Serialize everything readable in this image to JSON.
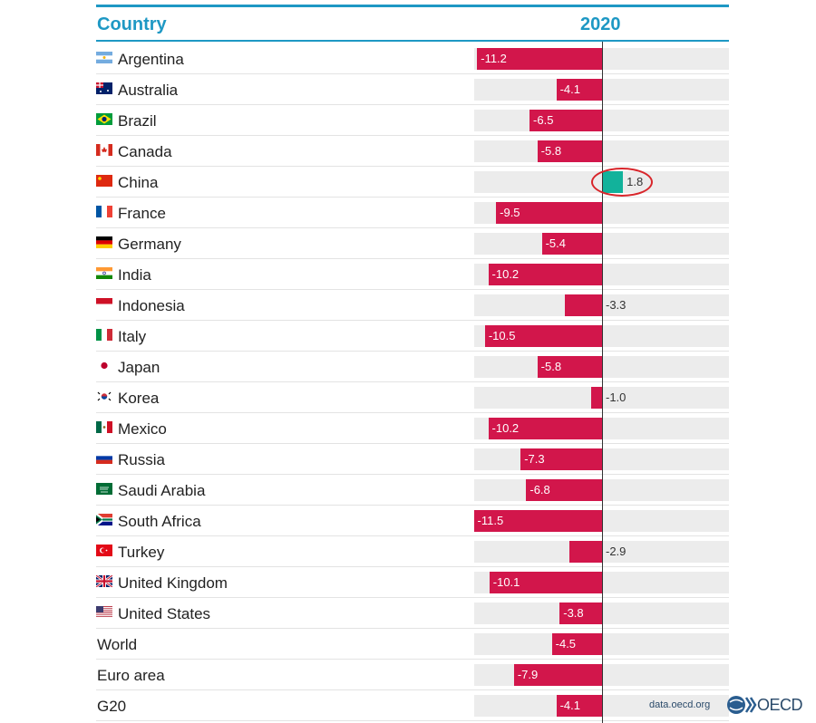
{
  "header": {
    "country_label": "Country",
    "year_label": "2020"
  },
  "footer": {
    "source": "data.oecd.org",
    "logo_text": "OECD"
  },
  "colors": {
    "negative": "#d2164b",
    "positive": "#12b29b",
    "accent": "#1e98c4",
    "track": "#ececec",
    "highlight_ring": "#d8262b"
  },
  "highlight": {
    "country": "China"
  },
  "chart_data": {
    "type": "bar",
    "orientation": "horizontal",
    "categories": [
      "Argentina",
      "Australia",
      "Brazil",
      "Canada",
      "China",
      "France",
      "Germany",
      "India",
      "Indonesia",
      "Italy",
      "Japan",
      "Korea",
      "Mexico",
      "Russia",
      "Saudi Arabia",
      "South Africa",
      "Turkey",
      "United Kingdom",
      "United States",
      "World",
      "Euro area",
      "G20"
    ],
    "values": [
      -11.2,
      -4.1,
      -6.5,
      -5.8,
      1.8,
      -9.5,
      -5.4,
      -10.2,
      -3.3,
      -10.5,
      -5.8,
      -1.0,
      -10.2,
      -7.3,
      -6.8,
      -11.5,
      -2.9,
      -10.1,
      -3.8,
      -4.5,
      -7.9,
      -4.1
    ],
    "labels": [
      "-11.2",
      "-4.1",
      "-6.5",
      "-5.8",
      "1.8",
      "-9.5",
      "-5.4",
      "-10.2",
      "-3.3",
      "-10.5",
      "-5.8",
      "-1.0",
      "-10.2",
      "-7.3",
      "-6.8",
      "-11.5",
      "-2.9",
      "-10.1",
      "-3.8",
      "-4.5",
      "-7.9",
      "-4.1"
    ],
    "flags": [
      "argentina",
      "australia",
      "brazil",
      "canada",
      "china",
      "france",
      "germany",
      "india",
      "indonesia",
      "italy",
      "japan",
      "korea",
      "mexico",
      "russia",
      "saudi-arabia",
      "south-africa",
      "turkey",
      "united-kingdom",
      "united-states",
      null,
      null,
      null
    ],
    "title": "",
    "column_header": "2020",
    "xlim": [
      -11.5,
      11.5
    ],
    "grid": false,
    "legend": "none"
  }
}
